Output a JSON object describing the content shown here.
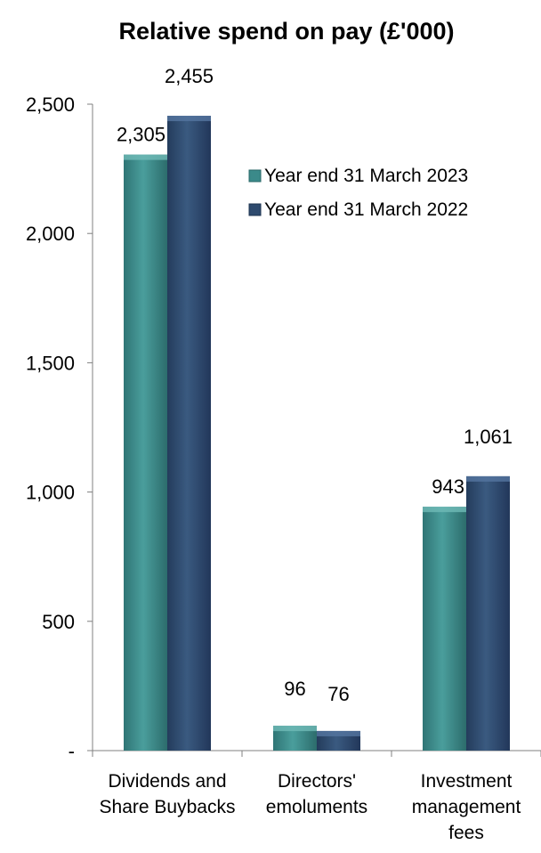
{
  "chart_data": {
    "type": "bar",
    "title": "Relative spend on pay (£'000)",
    "categories": [
      [
        "Dividends and",
        "Share Buybacks"
      ],
      [
        "Directors'",
        "emoluments"
      ],
      [
        "Investment",
        "management",
        "fees"
      ]
    ],
    "series": [
      {
        "name": "Year end 31 March 2023",
        "values": [
          2305,
          96,
          943
        ],
        "labels": [
          "2,305",
          "96",
          "943"
        ],
        "color": "#3b8a8a"
      },
      {
        "name": "Year end 31 March 2022",
        "values": [
          2455,
          76,
          1061
        ],
        "labels": [
          "2,455",
          "76",
          "1,061"
        ],
        "color": "#2e4a6e"
      }
    ],
    "ylim": [
      0,
      2500
    ],
    "yticks": [
      0,
      500,
      1000,
      1500,
      2000,
      2500
    ],
    "ytick_labels": [
      "-",
      "500",
      "1,000",
      "1,500",
      "2,000",
      "2,500"
    ],
    "grid": false,
    "legend_position": "top-right"
  }
}
